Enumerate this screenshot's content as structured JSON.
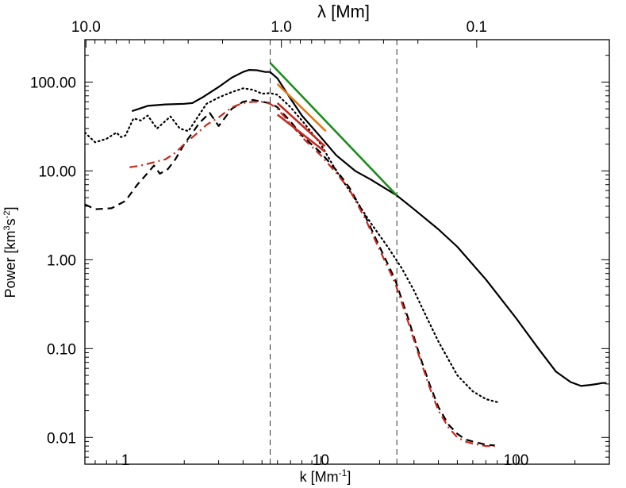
{
  "chart_data": {
    "type": "line",
    "xscale": "log",
    "yscale": "log",
    "xlim": [
      0.62,
      300
    ],
    "ylim": [
      0.005,
      300
    ],
    "xlabel": {
      "main": "k  [Mm",
      "sup": "-1",
      "end": "]"
    },
    "ylabel": {
      "main": "Power  [km",
      "sup1": "3",
      "mid": "s",
      "sup2": "-2",
      "end": "]"
    },
    "top_axis": {
      "title": "λ  [Mm]",
      "ticks": [
        {
          "k": 0.628,
          "label": "10.0"
        },
        {
          "k": 6.28,
          "label": "1.0"
        },
        {
          "k": 62.8,
          "label": "0.1"
        }
      ]
    },
    "x_ticks": [
      {
        "value": 1,
        "label": "1"
      },
      {
        "value": 10,
        "label": "10"
      },
      {
        "value": 100,
        "label": "100"
      }
    ],
    "y_ticks": [
      {
        "value": 0.01,
        "label": "0.01"
      },
      {
        "value": 0.1,
        "label": "0.10"
      },
      {
        "value": 1,
        "label": "1.00"
      },
      {
        "value": 10,
        "label": "10.00"
      },
      {
        "value": 100,
        "label": "100.00"
      }
    ],
    "vlines": [
      5.5,
      24.5
    ],
    "series": [
      {
        "style": "solid",
        "color": "#000000",
        "x": [
          1.08,
          1.3,
          1.6,
          2.0,
          2.2,
          2.5,
          3.0,
          3.5,
          4.0,
          4.3,
          4.7,
          5.2,
          5.5,
          6.0,
          7.0,
          8.0,
          10.0,
          12.0,
          15.0,
          18.0,
          21.0,
          24.5,
          30.0,
          40.0,
          50.0,
          70.0,
          100.0,
          130.0,
          160.0,
          190.0,
          215.0,
          240.0,
          260.0,
          275.0,
          290.0
        ],
        "y": [
          47,
          54,
          56,
          57,
          58,
          68,
          88,
          112,
          130,
          137,
          136,
          130,
          130,
          110,
          65,
          42,
          24,
          15,
          10,
          8.0,
          6.5,
          5.3,
          3.7,
          2.2,
          1.4,
          0.6,
          0.22,
          0.1,
          0.055,
          0.042,
          0.038,
          0.039,
          0.04,
          0.041,
          0.041
        ]
      },
      {
        "style": "dotted",
        "color": "#000000",
        "x": [
          0.62,
          0.7,
          0.8,
          0.9,
          0.95,
          1.0,
          1.1,
          1.2,
          1.3,
          1.45,
          1.7,
          1.9,
          2.1,
          2.3,
          2.6,
          3.0,
          3.5,
          4.0,
          4.5,
          5.0,
          5.5,
          6.0,
          7.0,
          8.0,
          10.0,
          12.0,
          15.0,
          18.0,
          22.0,
          26.0,
          30.0,
          35.0,
          40.0,
          50.0,
          60.0,
          70.0,
          80.0
        ],
        "y": [
          27,
          21,
          23,
          27,
          24,
          25,
          39,
          37,
          42,
          30,
          41,
          30,
          28,
          38,
          57,
          67,
          77,
          85,
          82,
          74,
          75,
          72,
          52,
          37,
          20,
          10,
          4.8,
          2.6,
          1.4,
          0.8,
          0.45,
          0.22,
          0.12,
          0.05,
          0.033,
          0.027,
          0.025
        ]
      },
      {
        "style": "dashed",
        "color": "#000000",
        "x": [
          0.62,
          0.7,
          0.85,
          1.0,
          1.15,
          1.3,
          1.4,
          1.5,
          1.65,
          1.8,
          2.0,
          2.4,
          2.7,
          3.0,
          3.5,
          4.0,
          4.5,
          5.0,
          5.5,
          6.0,
          7.0,
          8.0,
          10.0,
          12.0,
          14.0,
          17.0,
          20.0,
          24.0,
          28.0,
          32.0,
          36.0,
          40.0,
          45.0,
          50.0,
          55.0,
          60.0,
          70.0,
          78.0
        ],
        "y": [
          4.2,
          3.7,
          3.8,
          4.6,
          7.0,
          9.5,
          11.5,
          9.3,
          10.5,
          13.5,
          20,
          35,
          45,
          32,
          50,
          60,
          63,
          60,
          58,
          52,
          36,
          25,
          16,
          10.2,
          6.5,
          3.0,
          1.4,
          0.6,
          0.22,
          0.085,
          0.04,
          0.022,
          0.014,
          0.011,
          0.0095,
          0.009,
          0.0083,
          0.0081
        ]
      },
      {
        "style": "dashdot",
        "color": "#c8281e",
        "x": [
          1.05,
          1.2,
          1.4,
          1.6,
          1.8,
          2.0,
          2.3,
          2.6,
          3.0,
          3.5,
          4.0,
          4.5,
          5.0,
          5.5,
          6.0,
          7.0,
          8.0,
          10.0,
          12.0,
          14.0,
          17.0,
          20.0,
          24.0,
          28.0,
          32.0,
          36.0,
          40.0,
          45.0,
          50.0,
          55.0,
          60.0,
          70.0,
          78.0
        ],
        "y": [
          11,
          11.5,
          12.5,
          13.5,
          16,
          20,
          26,
          33,
          40,
          52,
          58,
          60,
          60,
          57,
          50,
          34,
          24,
          15,
          9.5,
          6.2,
          2.8,
          1.3,
          0.55,
          0.2,
          0.08,
          0.037,
          0.02,
          0.013,
          0.01,
          0.009,
          0.0085,
          0.008,
          0.008
        ]
      },
      {
        "style": "solid",
        "color": "#1e8c1e",
        "width": 2.6,
        "x": [
          5.5,
          24.5
        ],
        "y": [
          165,
          5.3
        ]
      },
      {
        "style": "solid",
        "color": "#e07814",
        "width": 2.6,
        "x": [
          6.0,
          10.6
        ],
        "y": [
          95,
          28
        ]
      },
      {
        "style": "solid",
        "color": "#c8281e",
        "width": 2.6,
        "x": [
          6.0,
          10.5
        ],
        "y": [
          58,
          19
        ]
      },
      {
        "style": "solid",
        "color": "#c8281e",
        "width": 2.6,
        "x": [
          6.0,
          10.5
        ],
        "y": [
          43,
          16.5
        ]
      }
    ]
  }
}
